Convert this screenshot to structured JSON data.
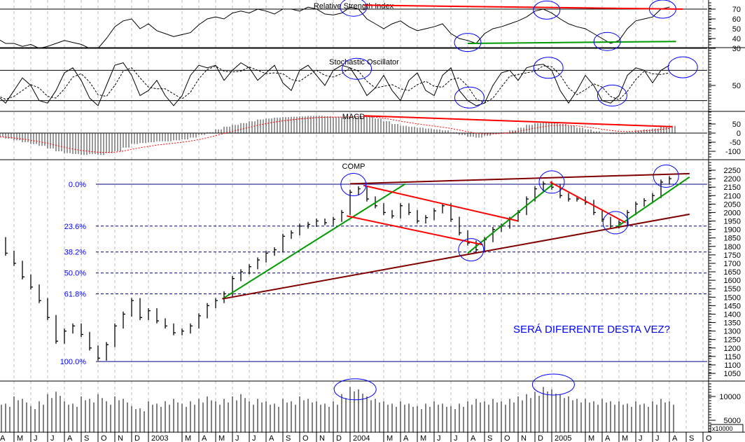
{
  "chart_data": {
    "type": "line",
    "title": "COMP",
    "frequency": "biweekly, starting Apr 2002 (month index -21 = Apr 2002, 0 = Jan 2004)",
    "start_month_index": -21,
    "step_months": 0.5,
    "x_axis_labels": [
      {
        "m": -21,
        "label": "A"
      },
      {
        "m": -20,
        "label": "M"
      },
      {
        "m": -19,
        "label": "J"
      },
      {
        "m": -18,
        "label": "J"
      },
      {
        "m": -17,
        "label": "A"
      },
      {
        "m": -16,
        "label": "S"
      },
      {
        "m": -15,
        "label": "O"
      },
      {
        "m": -14,
        "label": "N"
      },
      {
        "m": -13,
        "label": "D"
      },
      {
        "m": -12,
        "label": "2003"
      },
      {
        "m": -10,
        "label": "M"
      },
      {
        "m": -9,
        "label": "A"
      },
      {
        "m": -8,
        "label": "M"
      },
      {
        "m": -7,
        "label": "J"
      },
      {
        "m": -6,
        "label": "J"
      },
      {
        "m": -5,
        "label": "A"
      },
      {
        "m": -4,
        "label": "S"
      },
      {
        "m": -3,
        "label": "O"
      },
      {
        "m": -2,
        "label": "N"
      },
      {
        "m": -1,
        "label": "D"
      },
      {
        "m": 0,
        "label": "2004"
      },
      {
        "m": 2,
        "label": "M"
      },
      {
        "m": 3,
        "label": "A"
      },
      {
        "m": 4,
        "label": "M"
      },
      {
        "m": 5,
        "label": "J"
      },
      {
        "m": 6,
        "label": "J"
      },
      {
        "m": 7,
        "label": "A"
      },
      {
        "m": 8,
        "label": "S"
      },
      {
        "m": 9,
        "label": "O"
      },
      {
        "m": 10,
        "label": "N"
      },
      {
        "m": 11,
        "label": "D"
      },
      {
        "m": 12,
        "label": "2005"
      },
      {
        "m": 14,
        "label": "M"
      },
      {
        "m": 15,
        "label": "A"
      },
      {
        "m": 16,
        "label": "M"
      },
      {
        "m": 17,
        "label": "J"
      },
      {
        "m": 18,
        "label": "J"
      },
      {
        "m": 19,
        "label": "A"
      },
      {
        "m": 20,
        "label": "S"
      },
      {
        "m": 21,
        "label": "O"
      }
    ],
    "panels": {
      "rsi": {
        "title": "Relative Strength Index",
        "ylim": [
          25,
          80
        ],
        "ticks": [
          "70",
          "60",
          "50",
          "40",
          "30"
        ],
        "levels": [
          70,
          30
        ],
        "values": [
          40,
          35,
          35,
          32,
          34,
          30,
          32,
          35,
          38,
          36,
          34,
          30,
          30,
          40,
          52,
          58,
          60,
          50,
          55,
          48,
          45,
          42,
          44,
          46,
          54,
          60,
          62,
          60,
          66,
          68,
          66,
          70,
          68,
          65,
          70,
          70,
          68,
          72,
          70,
          65,
          64,
          66,
          72,
          70,
          60,
          55,
          50,
          55,
          58,
          52,
          48,
          50,
          52,
          55,
          45,
          40,
          38,
          35,
          45,
          50,
          52,
          55,
          58,
          62,
          68,
          70,
          66,
          60,
          55,
          52,
          50,
          45,
          40,
          35,
          38,
          50,
          58,
          60,
          62,
          70,
          72
        ]
      },
      "stochastic": {
        "title": "Stochastic Oscillator",
        "ylim": [
          -5,
          105
        ],
        "ticks": [
          "50"
        ],
        "levels": [
          80,
          20
        ],
        "values": [
          30,
          15,
          40,
          65,
          50,
          20,
          15,
          40,
          75,
          85,
          60,
          25,
          10,
          50,
          90,
          95,
          70,
          30,
          40,
          60,
          30,
          10,
          30,
          70,
          90,
          85,
          90,
          60,
          80,
          95,
          85,
          60,
          75,
          90,
          55,
          40,
          80,
          90,
          70,
          50,
          80,
          90,
          85,
          60,
          30,
          45,
          70,
          40,
          20,
          60,
          75,
          40,
          30,
          70,
          85,
          40,
          20,
          10,
          15,
          50,
          75,
          80,
          60,
          85,
          90,
          92,
          80,
          40,
          15,
          40,
          70,
          50,
          20,
          15,
          30,
          70,
          85,
          80,
          55,
          80,
          90
        ]
      },
      "macd": {
        "title": "MACD",
        "ticks": [
          "50",
          "0",
          "-50",
          "-100"
        ],
        "values": [
          -20,
          -30,
          -40,
          -50,
          -60,
          -70,
          -85,
          -100,
          -110,
          -115,
          -120,
          -115,
          -120,
          -110,
          -100,
          -80,
          -60,
          -55,
          -50,
          -45,
          -45,
          -40,
          -35,
          -25,
          -10,
          5,
          20,
          35,
          45,
          55,
          65,
          75,
          80,
          85,
          88,
          90,
          92,
          94,
          95,
          93,
          90,
          88,
          92,
          94,
          90,
          80,
          65,
          50,
          40,
          35,
          30,
          25,
          20,
          15,
          5,
          -10,
          -20,
          -25,
          -15,
          -5,
          5,
          15,
          30,
          45,
          55,
          60,
          58,
          50,
          40,
          30,
          20,
          10,
          0,
          -5,
          -5,
          5,
          15,
          20,
          25,
          35,
          40
        ]
      },
      "price": {
        "title": "COMP",
        "ylim": [
          1020,
          2290
        ],
        "ticks": [
          "2250",
          "2200",
          "2150",
          "2100",
          "2050",
          "2000",
          "1950",
          "1900",
          "1850",
          "1800",
          "1750",
          "1700",
          "1650",
          "1600",
          "1550",
          "1500",
          "1450",
          "1400",
          "1350",
          "1300",
          "1250",
          "1200",
          "1150",
          "1100",
          "1050"
        ],
        "close": [
          1840,
          1760,
          1700,
          1620,
          1560,
          1480,
          1380,
          1240,
          1300,
          1330,
          1280,
          1200,
          1140,
          1220,
          1330,
          1400,
          1480,
          1380,
          1420,
          1360,
          1330,
          1290,
          1300,
          1330,
          1390,
          1450,
          1480,
          1520,
          1610,
          1650,
          1680,
          1720,
          1760,
          1780,
          1860,
          1880,
          1920,
          1930,
          1950,
          1940,
          1960,
          2000,
          2120,
          2140,
          2080,
          2040,
          2000,
          1980,
          2040,
          2000,
          1950,
          1970,
          2010,
          2040,
          1960,
          1880,
          1820,
          1780,
          1840,
          1900,
          1920,
          1960,
          2000,
          2080,
          2140,
          2170,
          2150,
          2100,
          2080,
          2080,
          2060,
          2000,
          1960,
          1920,
          1940,
          2000,
          2050,
          2070,
          2100,
          2180,
          2200
        ],
        "bar_range": 50,
        "fibonacci": {
          "high": 2167,
          "low": 1120,
          "levels": [
            {
              "label": "0.0%",
              "value": 2167,
              "style": "solid"
            },
            {
              "label": "23.6%",
              "value": 1920,
              "style": "dashed"
            },
            {
              "label": "38.2%",
              "value": 1767,
              "style": "dashed"
            },
            {
              "label": "50.0%",
              "value": 1643,
              "style": "dashed"
            },
            {
              "label": "61.8%",
              "value": 1520,
              "style": "dashed"
            },
            {
              "label": "100.0%",
              "value": 1120,
              "style": "solid"
            }
          ]
        },
        "annotation_text": "SERÁ DIFERENTE DESTA VEZ?"
      },
      "volume": {
        "ticks": [
          "10000",
          "5000"
        ],
        "unit_label": "x10000",
        "values": [
          9000,
          8500,
          10000,
          9500,
          8000,
          9000,
          10500,
          11000,
          9000,
          8500,
          10000,
          9500,
          10500,
          9000,
          10000,
          9500,
          8000,
          7500,
          9000,
          8500,
          9000,
          9500,
          8500,
          9000,
          9500,
          10000,
          9000,
          9500,
          10000,
          10500,
          9000,
          9500,
          9000,
          8500,
          9500,
          9000,
          10000,
          9500,
          9000,
          8500,
          9000,
          10500,
          12000,
          11500,
          10000,
          9500,
          9000,
          8500,
          9000,
          8500,
          8000,
          8500,
          9000,
          8500,
          8000,
          8500,
          9000,
          9500,
          9000,
          9500,
          9000,
          9500,
          10000,
          10500,
          11000,
          12000,
          11500,
          10500,
          10000,
          9500,
          9500,
          9000,
          9500,
          9000,
          9000,
          8500,
          9000,
          8500,
          9000,
          9500,
          9000
        ]
      }
    },
    "annotations": {
      "price_lines": [
        {
          "color": "#009900",
          "from": [
            -7.6,
            1490
          ],
          "to": [
            3.3,
            2170
          ]
        },
        {
          "color": "#009900",
          "from": [
            7.0,
            1760
          ],
          "to": [
            12.1,
            2170
          ]
        },
        {
          "color": "#009900",
          "from": [
            15.8,
            1910
          ],
          "to": [
            20.2,
            2210
          ]
        },
        {
          "color": "#800000",
          "from": [
            -7.6,
            1490
          ],
          "to": [
            20.2,
            1990
          ]
        },
        {
          "color": "#800000",
          "from": [
            0.0,
            2170
          ],
          "to": [
            20.2,
            2230
          ]
        },
        {
          "color": "#ff0000",
          "from": [
            -0.2,
            1980
          ],
          "to": [
            7.9,
            1810
          ]
        },
        {
          "color": "#ff0000",
          "from": [
            0.8,
            2160
          ],
          "to": [
            10.0,
            1950
          ]
        },
        {
          "color": "#ff0000",
          "from": [
            11.9,
            2180
          ],
          "to": [
            16.4,
            1940
          ]
        }
      ],
      "price_circles": [
        [
          0.2,
          2165
        ],
        [
          7.2,
          1780
        ],
        [
          12.0,
          2180
        ],
        [
          15.8,
          1940
        ],
        [
          18.8,
          2215
        ]
      ],
      "rsi_lines": [
        {
          "color": "#ff0000",
          "from": [
            0.8,
            74
          ],
          "to": [
            19.8,
            70
          ]
        },
        {
          "color": "#009900",
          "from": [
            7.0,
            35
          ],
          "to": [
            19.4,
            37
          ]
        }
      ],
      "rsi_circles": [
        [
          0.2,
          72
        ],
        [
          7.0,
          36
        ],
        [
          11.7,
          69
        ],
        [
          15.3,
          37
        ],
        [
          18.6,
          70
        ]
      ],
      "stoch_circles": [
        [
          0.4,
          83
        ],
        [
          7.1,
          26
        ],
        [
          11.8,
          85
        ],
        [
          15.6,
          30
        ],
        [
          19.8,
          86
        ]
      ],
      "macd_lines": [
        {
          "color": "#ff0000",
          "from": [
            0.8,
            95
          ],
          "to": [
            19.2,
            35
          ]
        }
      ],
      "volume_circles": [
        [
          0.3,
          11500
        ],
        [
          12.1,
          12500
        ]
      ]
    }
  }
}
